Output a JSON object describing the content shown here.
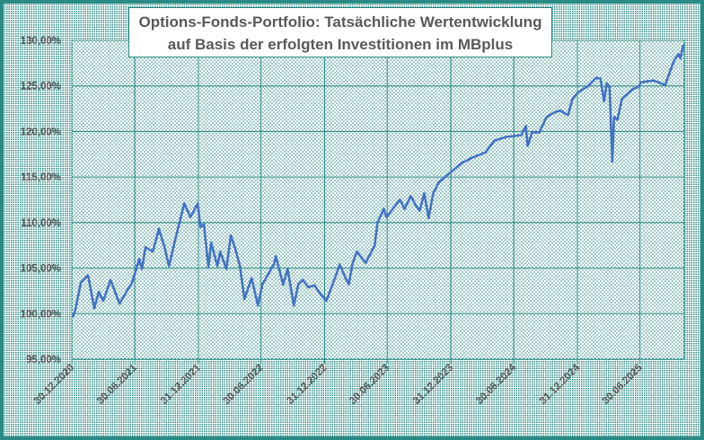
{
  "chart_data": {
    "type": "line",
    "title": [
      "Options-Fonds-Portfolio: Tatsächliche Wertentwicklung",
      "auf Basis der erfolgten Investitionen im MBplus"
    ],
    "xlabel": "",
    "ylabel": "",
    "ylim": [
      95,
      130
    ],
    "xlim": [
      "2020-12-30",
      "2025-11-05"
    ],
    "grid": true,
    "y_ticks": [
      "95,00%",
      "100,00%",
      "105,00%",
      "110,00%",
      "115,00%",
      "120,00%",
      "125,00%",
      "130,00%"
    ],
    "y_tick_values": [
      95,
      100,
      105,
      110,
      115,
      120,
      125,
      130
    ],
    "x_ticks": [
      "30.12.2020",
      "30.06.2021",
      "31.12.2021",
      "30.06.2022",
      "31.12.2022",
      "30.06.2023",
      "31.12.2023",
      "30.06.2024",
      "31.12.2024",
      "30.06.2025"
    ],
    "x_tick_dates": [
      "2020-12-30",
      "2021-06-30",
      "2021-12-31",
      "2022-06-30",
      "2022-12-31",
      "2023-06-30",
      "2023-12-31",
      "2024-06-30",
      "2024-12-31",
      "2025-06-30"
    ],
    "colors": {
      "line": "#4472c4",
      "grid": "#2a8a85",
      "background_dots": "#2a8a85"
    },
    "series": [
      {
        "points": [
          [
            "2021-01-02",
            99.6
          ],
          [
            "2021-01-09",
            100.4
          ],
          [
            "2021-01-25",
            103.4
          ],
          [
            "2021-02-15",
            104.2
          ],
          [
            "2021-03-05",
            100.6
          ],
          [
            "2021-03-18",
            102.4
          ],
          [
            "2021-03-31",
            101.4
          ],
          [
            "2021-04-21",
            103.7
          ],
          [
            "2021-05-17",
            101.1
          ],
          [
            "2021-06-09",
            102.6
          ],
          [
            "2021-06-22",
            103.4
          ],
          [
            "2021-07-13",
            106.0
          ],
          [
            "2021-07-21",
            104.9
          ],
          [
            "2021-07-31",
            107.3
          ],
          [
            "2021-08-21",
            106.8
          ],
          [
            "2021-09-08",
            109.3
          ],
          [
            "2021-09-24",
            107.3
          ],
          [
            "2021-10-07",
            105.2
          ],
          [
            "2021-10-25",
            108.1
          ],
          [
            "2021-11-20",
            112.1
          ],
          [
            "2021-12-08",
            110.6
          ],
          [
            "2021-12-29",
            112.1
          ],
          [
            "2022-01-06",
            109.5
          ],
          [
            "2022-01-16",
            109.8
          ],
          [
            "2022-01-29",
            105.1
          ],
          [
            "2022-02-06",
            107.8
          ],
          [
            "2022-02-24",
            105.2
          ],
          [
            "2022-03-04",
            106.8
          ],
          [
            "2022-03-22",
            104.9
          ],
          [
            "2022-04-04",
            108.6
          ],
          [
            "2022-04-17",
            107.1
          ],
          [
            "2022-04-30",
            105.2
          ],
          [
            "2022-05-13",
            101.6
          ],
          [
            "2022-06-03",
            103.9
          ],
          [
            "2022-06-21",
            100.9
          ],
          [
            "2022-07-04",
            103.2
          ],
          [
            "2022-08-07",
            105.5
          ],
          [
            "2022-08-12",
            106.3
          ],
          [
            "2022-09-02",
            103.2
          ],
          [
            "2022-09-15",
            104.9
          ],
          [
            "2022-10-03",
            100.9
          ],
          [
            "2022-10-16",
            103.2
          ],
          [
            "2022-10-29",
            103.7
          ],
          [
            "2022-11-14",
            102.9
          ],
          [
            "2022-12-02",
            103.1
          ],
          [
            "2022-12-20",
            102.1
          ],
          [
            "2023-01-05",
            101.4
          ],
          [
            "2023-01-23",
            103.2
          ],
          [
            "2023-02-13",
            105.4
          ],
          [
            "2023-02-26",
            104.2
          ],
          [
            "2023-03-11",
            103.2
          ],
          [
            "2023-03-21",
            105.4
          ],
          [
            "2023-04-03",
            106.8
          ],
          [
            "2023-04-29",
            105.6
          ],
          [
            "2023-05-25",
            107.5
          ],
          [
            "2023-06-02",
            110.0
          ],
          [
            "2023-06-20",
            111.5
          ],
          [
            "2023-06-28",
            110.6
          ],
          [
            "2023-07-16",
            111.5
          ],
          [
            "2023-08-06",
            112.5
          ],
          [
            "2023-08-19",
            111.5
          ],
          [
            "2023-09-06",
            112.9
          ],
          [
            "2023-09-22",
            111.8
          ],
          [
            "2023-10-02",
            111.3
          ],
          [
            "2023-10-15",
            113.2
          ],
          [
            "2023-10-28",
            110.5
          ],
          [
            "2023-11-10",
            113.2
          ],
          [
            "2023-11-26",
            114.4
          ],
          [
            "2023-12-27",
            115.4
          ],
          [
            "2024-01-30",
            116.5
          ],
          [
            "2024-03-06",
            117.2
          ],
          [
            "2024-04-09",
            117.7
          ],
          [
            "2024-05-05",
            119.0
          ],
          [
            "2024-06-08",
            119.4
          ],
          [
            "2024-07-22",
            119.6
          ],
          [
            "2024-08-04",
            120.6
          ],
          [
            "2024-08-09",
            118.4
          ],
          [
            "2024-08-22",
            119.9
          ],
          [
            "2024-09-12",
            119.9
          ],
          [
            "2024-10-03",
            121.6
          ],
          [
            "2024-10-26",
            122.1
          ],
          [
            "2024-11-11",
            122.3
          ],
          [
            "2024-12-04",
            121.8
          ],
          [
            "2024-12-17",
            123.6
          ],
          [
            "2025-01-02",
            124.3
          ],
          [
            "2025-01-28",
            124.9
          ],
          [
            "2025-02-23",
            125.9
          ],
          [
            "2025-03-08",
            125.8
          ],
          [
            "2025-03-18",
            123.3
          ],
          [
            "2025-03-26",
            125.3
          ],
          [
            "2025-04-03",
            124.9
          ],
          [
            "2025-04-11",
            116.7
          ],
          [
            "2025-04-16",
            121.6
          ],
          [
            "2025-04-26",
            121.3
          ],
          [
            "2025-05-09",
            123.6
          ],
          [
            "2025-06-07",
            124.6
          ],
          [
            "2025-06-25",
            124.9
          ],
          [
            "2025-07-03",
            125.4
          ],
          [
            "2025-08-08",
            125.6
          ],
          [
            "2025-09-11",
            125.1
          ],
          [
            "2025-09-24",
            126.5
          ],
          [
            "2025-10-07",
            127.8
          ],
          [
            "2025-10-20",
            128.5
          ],
          [
            "2025-10-25",
            128.0
          ],
          [
            "2025-11-02",
            129.5
          ]
        ]
      }
    ]
  }
}
